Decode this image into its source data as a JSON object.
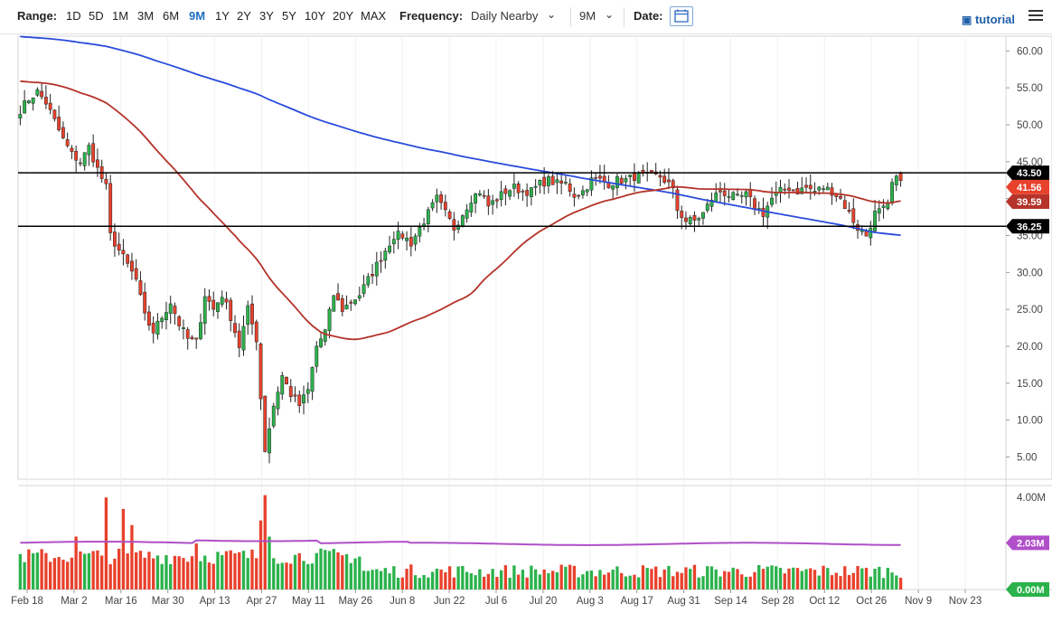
{
  "toolbar": {
    "range_label": "Range:",
    "ranges": [
      "1D",
      "5D",
      "1M",
      "3M",
      "6M",
      "9M",
      "1Y",
      "2Y",
      "3Y",
      "5Y",
      "10Y",
      "20Y",
      "MAX"
    ],
    "active_range": "9M",
    "frequency_label": "Frequency:",
    "frequency_value": "Daily Nearby",
    "period_value": "9M",
    "date_label": "Date:",
    "tutorial_label": "tutorial"
  },
  "colors": {
    "up": "#2bb24c",
    "down": "#e8412c",
    "sma_long": "#2a4bdc",
    "sma_short": "#b5332a",
    "volume_avg": "#b04fc9",
    "level_line": "#000000"
  },
  "chart_data": [
    {
      "type": "candlestick",
      "title": "",
      "x_tick_labels": [
        "Feb 18",
        "Mar 2",
        "Mar 16",
        "Mar 30",
        "Apr 13",
        "Apr 27",
        "May 11",
        "May 26",
        "Jun 8",
        "Jun 22",
        "Jul 6",
        "Jul 20",
        "Aug 3",
        "Aug 17",
        "Aug 31",
        "Sep 14",
        "Sep 28",
        "Oct 12",
        "Oct 26",
        "Nov 9",
        "Nov 23"
      ],
      "y_ticks": [
        "5.00",
        "10.00",
        "15.00",
        "20.00",
        "25.00",
        "30.00",
        "35.00",
        "40.00",
        "45.00",
        "50.00",
        "55.00",
        "60.00"
      ],
      "ylim": [
        2,
        62
      ],
      "close_path": [
        [
          0,
          52
        ],
        [
          2,
          53.5
        ],
        [
          4,
          54.5
        ],
        [
          6,
          53
        ],
        [
          8,
          50.5
        ],
        [
          10,
          48
        ],
        [
          12,
          46
        ],
        [
          14,
          45
        ],
        [
          16,
          47
        ],
        [
          18,
          44
        ],
        [
          20,
          41.5
        ],
        [
          21,
          35
        ],
        [
          23,
          33
        ],
        [
          25,
          31
        ],
        [
          27,
          29
        ],
        [
          29,
          24
        ],
        [
          31,
          22
        ],
        [
          33,
          24
        ],
        [
          35,
          26
        ],
        [
          37,
          23
        ],
        [
          39,
          21
        ],
        [
          41,
          20.5
        ],
        [
          43,
          27
        ],
        [
          45,
          25
        ],
        [
          47,
          27
        ],
        [
          49,
          24
        ],
        [
          51,
          20
        ],
        [
          53,
          25
        ],
        [
          55,
          21
        ],
        [
          56,
          13
        ],
        [
          57,
          6
        ],
        [
          59,
          12
        ],
        [
          61,
          16
        ],
        [
          63,
          13.5
        ],
        [
          65,
          12
        ],
        [
          67,
          14
        ],
        [
          69,
          20
        ],
        [
          71,
          22
        ],
        [
          73,
          27
        ],
        [
          75,
          25
        ],
        [
          77,
          26
        ],
        [
          79,
          27
        ],
        [
          81,
          29
        ],
        [
          83,
          31
        ],
        [
          85,
          33
        ],
        [
          87,
          35
        ],
        [
          89,
          35
        ],
        [
          91,
          34
        ],
        [
          93,
          36
        ],
        [
          95,
          38
        ],
        [
          97,
          40
        ],
        [
          99,
          38
        ],
        [
          101,
          36
        ],
        [
          103,
          38
        ],
        [
          105,
          40
        ],
        [
          107,
          41
        ],
        [
          109,
          39
        ],
        [
          111,
          40
        ],
        [
          113,
          41
        ],
        [
          115,
          41.5
        ],
        [
          117,
          41
        ],
        [
          119,
          41
        ],
        [
          121,
          42
        ],
        [
          123,
          42.5
        ],
        [
          125,
          42
        ],
        [
          127,
          42
        ],
        [
          129,
          40.5
        ],
        [
          131,
          41
        ],
        [
          133,
          42.5
        ],
        [
          135,
          42.5
        ],
        [
          137,
          42
        ],
        [
          139,
          42.5
        ],
        [
          141,
          42.5
        ],
        [
          143,
          43
        ],
        [
          145,
          43
        ],
        [
          147,
          43
        ],
        [
          149,
          43
        ],
        [
          151,
          42
        ],
        [
          152,
          41
        ],
        [
          153,
          38.5
        ],
        [
          155,
          37
        ],
        [
          157,
          37
        ],
        [
          159,
          38
        ],
        [
          161,
          40
        ],
        [
          163,
          41
        ],
        [
          165,
          40.5
        ],
        [
          167,
          40
        ],
        [
          169,
          40.5
        ],
        [
          171,
          39
        ],
        [
          173,
          38
        ],
        [
          175,
          40
        ],
        [
          177,
          41
        ],
        [
          179,
          41.5
        ],
        [
          181,
          41
        ],
        [
          183,
          41.5
        ],
        [
          185,
          41
        ],
        [
          187,
          41.5
        ],
        [
          189,
          41
        ],
        [
          191,
          40
        ],
        [
          193,
          38
        ],
        [
          195,
          36
        ],
        [
          197,
          35
        ],
        [
          199,
          38
        ],
        [
          201,
          38.5
        ],
        [
          202,
          39
        ],
        [
          203,
          42
        ],
        [
          205,
          43
        ]
      ],
      "volume_y_ticks": [
        "0.00M",
        "2.03M",
        "4.00M"
      ],
      "volume_ylim": [
        0,
        4.4
      ],
      "volume_spikes": [
        [
          20,
          4.0
        ],
        [
          24,
          3.5
        ],
        [
          26,
          2.8
        ],
        [
          13,
          2.3
        ],
        [
          57,
          4.1
        ],
        [
          58,
          2.3
        ],
        [
          56,
          3.0
        ],
        [
          41,
          2.0
        ]
      ],
      "volume_avg": 2.03,
      "level_labels": [
        {
          "value": 43.5,
          "text": "43.50",
          "color": "#000000"
        },
        {
          "value": 41.56,
          "text": "41.56",
          "color": "#e8412c"
        },
        {
          "value": 39.59,
          "text": "39.59",
          "color": "#b5332a"
        },
        {
          "value": 36.25,
          "text": "36.25",
          "color": "#000000"
        }
      ],
      "volume_labels": [
        {
          "value": 2.03,
          "text": "2.03M",
          "color": "#b04fc9"
        },
        {
          "value": 0,
          "text": "0.00M",
          "color": "#2bb24c"
        }
      ],
      "horizontal_lines": [
        43.5,
        36.25
      ]
    }
  ]
}
